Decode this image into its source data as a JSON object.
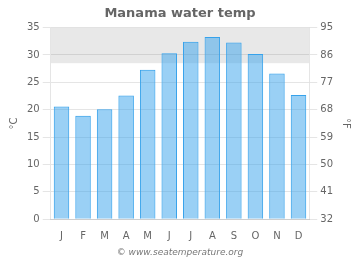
{
  "chart_data": {
    "type": "bar",
    "title": "Manama water temp",
    "categories": [
      "J",
      "F",
      "M",
      "A",
      "M",
      "J",
      "J",
      "A",
      "S",
      "O",
      "N",
      "D"
    ],
    "values": [
      20.6,
      18.9,
      20.1,
      22.6,
      27.3,
      30.3,
      32.4,
      33.3,
      32.3,
      30.2,
      26.6,
      22.7
    ],
    "ylim": [
      0,
      35
    ],
    "yticks": [
      0,
      5,
      10,
      15,
      20,
      25,
      30,
      35
    ],
    "y2lim": [
      32,
      95
    ],
    "y2ticks": [
      32,
      41,
      50,
      59,
      68,
      77,
      86,
      95
    ],
    "ylabel": "°C",
    "y2label": "°F",
    "shaded_band": [
      28.5,
      35
    ],
    "annotation": "© www.seatemperature.org",
    "grid": true
  }
}
